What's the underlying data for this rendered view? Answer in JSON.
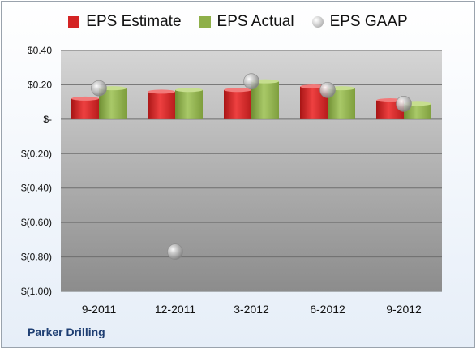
{
  "legend": {
    "estimate_label": "EPS Estimate",
    "actual_label": "EPS Actual",
    "gaap_label": "EPS GAAP"
  },
  "footer": {
    "company": "Parker Drilling"
  },
  "colors": {
    "estimate": "#d42424",
    "actual": "#8fb04a",
    "gaap": "#b0b0b0",
    "plot_top": "#d5d5d5",
    "plot_bottom": "#8c8c8c"
  },
  "chart_data": {
    "type": "bar",
    "categories": [
      "9-2011",
      "12-2011",
      "3-2012",
      "6-2012",
      "9-2012"
    ],
    "series": [
      {
        "name": "EPS Estimate",
        "values": [
          0.12,
          0.16,
          0.17,
          0.19,
          0.11
        ]
      },
      {
        "name": "EPS Actual",
        "values": [
          0.18,
          0.17,
          0.22,
          0.18,
          0.09
        ]
      },
      {
        "name": "EPS GAAP",
        "type": "scatter",
        "values": [
          0.18,
          -0.77,
          0.22,
          0.17,
          0.09
        ]
      }
    ],
    "ylim": [
      -1.0,
      0.4
    ],
    "yticks": [
      0.4,
      0.2,
      0,
      -0.2,
      -0.4,
      -0.6,
      -0.8,
      -1.0
    ],
    "ytick_labels": [
      "$0.40",
      "$0.20",
      "$-",
      "$(0.20)",
      "$(0.40)",
      "$(0.60)",
      "$(0.80)",
      "$(1.00)"
    ],
    "grid": true,
    "legend_position": "top"
  }
}
